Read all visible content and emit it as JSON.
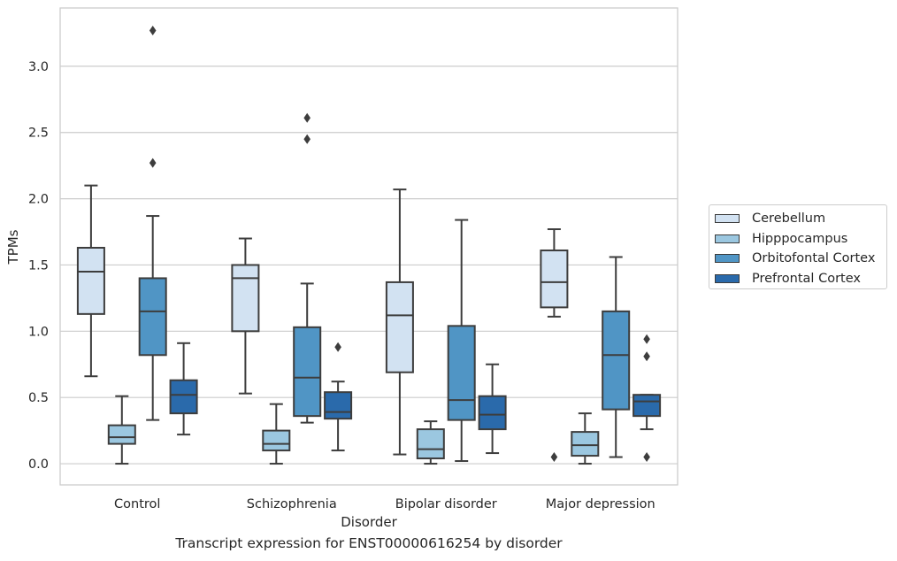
{
  "chart_data": {
    "type": "box",
    "caption": "Transcript expression for ENST00000616254 by disorder",
    "xlabel": "Disorder",
    "ylabel": "TPMs",
    "ylim": [
      -0.16,
      3.44
    ],
    "yticks": [
      "0.0",
      "0.5",
      "1.0",
      "1.5",
      "2.0",
      "2.5",
      "3.0"
    ],
    "categories": [
      "Control",
      "Schizophrenia",
      "Bipolar disorder",
      "Major depression"
    ],
    "grid": true,
    "legend_position": "right",
    "series": [
      {
        "name": "Cerebellum",
        "color": "#d2e2f2",
        "boxes": [
          {
            "whislo": 0.66,
            "q1": 1.13,
            "med": 1.45,
            "q3": 1.63,
            "whishi": 2.1,
            "fliers": []
          },
          {
            "whislo": 0.53,
            "q1": 1.0,
            "med": 1.4,
            "q3": 1.5,
            "whishi": 1.7,
            "fliers": []
          },
          {
            "whislo": 0.07,
            "q1": 0.69,
            "med": 1.12,
            "q3": 1.37,
            "whishi": 2.07,
            "fliers": []
          },
          {
            "whislo": 1.11,
            "q1": 1.18,
            "med": 1.37,
            "q3": 1.61,
            "whishi": 1.77,
            "fliers": [
              0.05
            ]
          }
        ]
      },
      {
        "name": "Hipppocampus",
        "color": "#9bc7e0",
        "boxes": [
          {
            "whislo": 0.0,
            "q1": 0.15,
            "med": 0.2,
            "q3": 0.29,
            "whishi": 0.51,
            "fliers": []
          },
          {
            "whislo": 0.0,
            "q1": 0.1,
            "med": 0.15,
            "q3": 0.25,
            "whishi": 0.45,
            "fliers": []
          },
          {
            "whislo": 0.0,
            "q1": 0.04,
            "med": 0.11,
            "q3": 0.26,
            "whishi": 0.32,
            "fliers": []
          },
          {
            "whislo": 0.0,
            "q1": 0.06,
            "med": 0.14,
            "q3": 0.24,
            "whishi": 0.38,
            "fliers": []
          }
        ]
      },
      {
        "name": "Orbitofontal Cortex",
        "color": "#5095c5",
        "boxes": [
          {
            "whislo": 0.33,
            "q1": 0.82,
            "med": 1.15,
            "q3": 1.4,
            "whishi": 1.87,
            "fliers": [
              2.27,
              3.27
            ]
          },
          {
            "whislo": 0.31,
            "q1": 0.36,
            "med": 0.65,
            "q3": 1.03,
            "whishi": 1.36,
            "fliers": [
              2.45,
              2.61
            ]
          },
          {
            "whislo": 0.02,
            "q1": 0.33,
            "med": 0.48,
            "q3": 1.04,
            "whishi": 1.84,
            "fliers": []
          },
          {
            "whislo": 0.05,
            "q1": 0.41,
            "med": 0.82,
            "q3": 1.15,
            "whishi": 1.56,
            "fliers": []
          }
        ]
      },
      {
        "name": "Prefrontal Cortex",
        "color": "#2a6aab",
        "boxes": [
          {
            "whislo": 0.22,
            "q1": 0.38,
            "med": 0.52,
            "q3": 0.63,
            "whishi": 0.91,
            "fliers": []
          },
          {
            "whislo": 0.1,
            "q1": 0.34,
            "med": 0.39,
            "q3": 0.54,
            "whishi": 0.62,
            "fliers": [
              0.88
            ]
          },
          {
            "whislo": 0.08,
            "q1": 0.26,
            "med": 0.37,
            "q3": 0.51,
            "whishi": 0.75,
            "fliers": []
          },
          {
            "whislo": 0.26,
            "q1": 0.36,
            "med": 0.47,
            "q3": 0.52,
            "whishi": 0.52,
            "fliers": [
              0.05,
              0.81,
              0.94
            ]
          }
        ]
      }
    ]
  }
}
